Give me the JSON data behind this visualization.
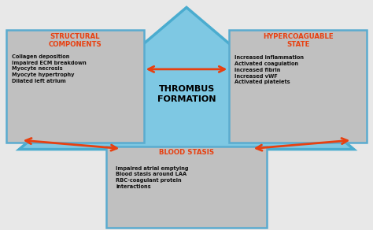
{
  "background_color": "#e8e8e8",
  "triangle_color": "#7ec8e3",
  "triangle_edge_color": "#4aaccf",
  "box_fill_color": "#c0c0c0",
  "box_edge_color": "#5aabcf",
  "arrow_color": "#e84010",
  "title_thrombus": "THROMBUS\nFORMATION",
  "box1_title": "STRUCTURAL\nCOMPONENTS",
  "box1_items": "Collagen deposition\nImpaired ECM breakdown\nMyocyte necrosis\nMyocyte hypertrophy\nDilated left atrium",
  "box2_title": "HYPERCOAGUABLE\nSTATE",
  "box2_items": "Increased inflammation\nActivated coagulation\nincreased fibrin\nIncreased vWF\nActivated platelets",
  "box3_title": "BLOOD STASIS",
  "box3_items": "Impaired atrial emptying\nBlood stasis around LAA\nRBC-coagulant protein\ninteractions",
  "header_color": "#e84010",
  "body_color": "#111111"
}
